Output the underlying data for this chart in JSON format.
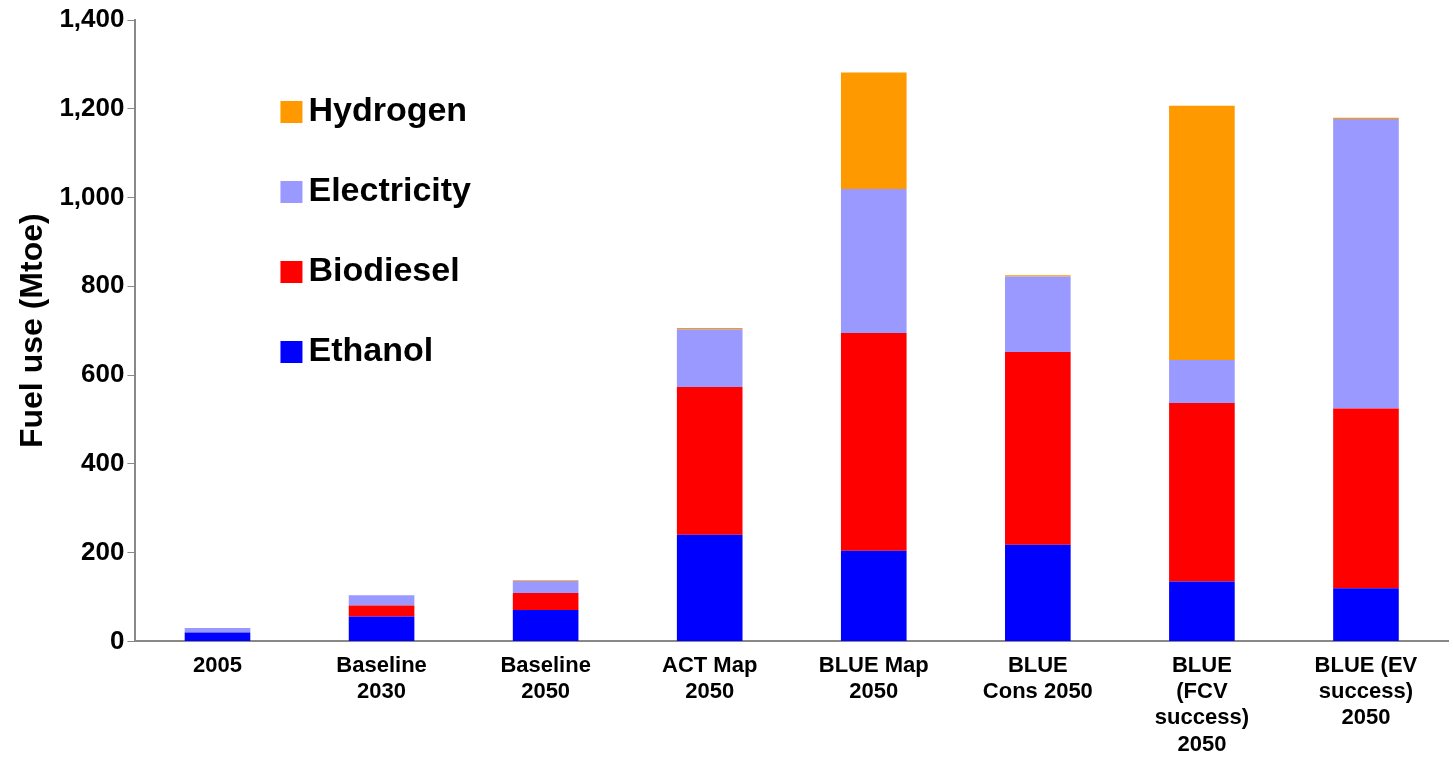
{
  "chart_data": {
    "type": "bar",
    "stacked": true,
    "ylabel": "Fuel use (Mtoe)",
    "categories": [
      "2005",
      "Baseline 2030",
      "Baseline 2050",
      "ACT Map 2050",
      "BLUE Map 2050",
      "BLUE Cons 2050",
      "BLUE (FCV success) 2050",
      "BLUE (EV success) 2050"
    ],
    "series": [
      {
        "name": "Ethanol",
        "color": "#0000ff",
        "values": [
          20,
          56,
          71,
          240,
          204,
          218,
          135,
          120
        ]
      },
      {
        "name": "Biodiesel",
        "color": "#ff0000",
        "values": [
          null,
          25,
          38,
          333,
          491,
          434,
          402,
          405
        ]
      },
      {
        "name": "Electricity",
        "color": "#9999ff",
        "values": [
          10,
          23,
          27,
          130,
          324,
          170,
          97,
          652
        ]
      },
      {
        "name": "Hydrogen",
        "color": "#ff9900",
        "values": [
          null,
          null,
          2,
          3,
          263,
          3,
          573,
          3
        ]
      }
    ],
    "ylim": [
      0,
      1400
    ],
    "yticks": [
      0,
      200,
      400,
      600,
      800,
      {
        "value": 1000,
        "label": "1,000"
      },
      {
        "value": 1200,
        "label": "1,200"
      },
      {
        "value": 1400,
        "label": "1,400"
      }
    ],
    "grid": false,
    "legend": "top left"
  }
}
